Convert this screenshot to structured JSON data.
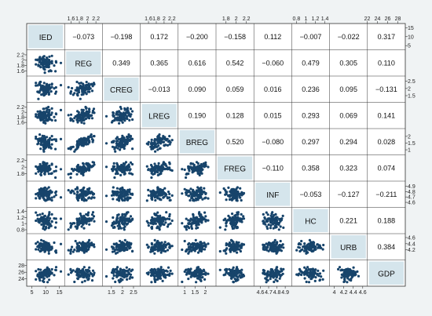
{
  "chart_data": {
    "type": "scatter-matrix",
    "variables": [
      "IED",
      "REG",
      "CREG",
      "LREG",
      "BREG",
      "FREG",
      "INF",
      "HC",
      "URB",
      "GDP"
    ],
    "correlations": [
      [
        null,
        -0.073,
        -0.198,
        0.172,
        -0.2,
        -0.158,
        0.112,
        -0.007,
        -0.022,
        0.317
      ],
      [
        null,
        null,
        0.349,
        0.365,
        0.616,
        0.542,
        -0.06,
        0.479,
        0.305,
        0.11
      ],
      [
        null,
        null,
        null,
        -0.013,
        0.09,
        0.059,
        0.016,
        0.236,
        0.095,
        -0.131
      ],
      [
        null,
        null,
        null,
        null,
        0.19,
        0.128,
        0.015,
        0.293,
        0.069,
        0.141
      ],
      [
        null,
        null,
        null,
        null,
        null,
        0.52,
        -0.08,
        0.297,
        0.294,
        0.028
      ],
      [
        null,
        null,
        null,
        null,
        null,
        null,
        -0.11,
        0.358,
        0.323,
        0.074
      ],
      [
        null,
        null,
        null,
        null,
        null,
        null,
        null,
        -0.053,
        -0.127,
        -0.211
      ],
      [
        null,
        null,
        null,
        null,
        null,
        null,
        null,
        null,
        0.221,
        0.188
      ],
      [
        null,
        null,
        null,
        null,
        null,
        null,
        null,
        null,
        null,
        0.384
      ]
    ],
    "correlation_labels": [
      [
        "",
        "−0.073",
        "−0.198",
        "0.172",
        "−0.200",
        "−0.158",
        "0.112",
        "−0.007",
        "−0.022",
        "0.317"
      ],
      [
        "",
        "",
        "0.349",
        "0.365",
        "0.616",
        "0.542",
        "−0.060",
        "0.479",
        "0.305",
        "0.110"
      ],
      [
        "",
        "",
        "",
        "−0.013",
        "0.090",
        "0.059",
        "0.016",
        "0.236",
        "0.095",
        "−0.131"
      ],
      [
        "",
        "",
        "",
        "",
        "0.190",
        "0.128",
        "0.015",
        "0.293",
        "0.069",
        "0.141"
      ],
      [
        "",
        "",
        "",
        "",
        "",
        "0.520",
        "−0.080",
        "0.297",
        "0.294",
        "0.028"
      ],
      [
        "",
        "",
        "",
        "",
        "",
        "",
        "−0.110",
        "0.358",
        "0.323",
        "0.074"
      ],
      [
        "",
        "",
        "",
        "",
        "",
        "",
        "",
        "−0.053",
        "−0.127",
        "−0.211"
      ],
      [
        "",
        "",
        "",
        "",
        "",
        "",
        "",
        "",
        "0.221",
        "0.188"
      ],
      [
        "",
        "",
        "",
        "",
        "",
        "",
        "",
        "",
        "",
        "0.384"
      ]
    ],
    "ranges": {
      "IED": [
        4,
        16
      ],
      "REG": [
        1.5,
        2.3
      ],
      "CREG": [
        1.2,
        2.7
      ],
      "LREG": [
        1.45,
        2.3
      ],
      "BREG": [
        0.8,
        2.4
      ],
      "FREG": [
        1.65,
        2.3
      ],
      "INF": [
        4.55,
        4.95
      ],
      "HC": [
        0.75,
        1.45
      ],
      "URB": [
        3.95,
        4.65
      ],
      "GDP": [
        22.5,
        29
      ]
    },
    "axis_ticks": {
      "bottom": {
        "IED": [
          "5",
          "10",
          "15"
        ],
        "CREG": [
          "1.5",
          "2",
          "2.5"
        ],
        "BREG": [
          "1",
          "1.5",
          "2"
        ],
        "INF": [
          "4.6",
          "4.7",
          "4.8",
          "4.9"
        ],
        "URB": [
          "4",
          "4.2",
          "4.4",
          "4.6"
        ]
      },
      "top": {
        "REG": [
          "1.6",
          "1.8",
          "2",
          "2.2"
        ],
        "LREG": [
          "1.6",
          "1.8",
          "2",
          "2.2"
        ],
        "FREG": [
          "1.8",
          "2",
          "2.2"
        ],
        "HC": [
          "0.8",
          "1",
          "1.2",
          "1.4"
        ],
        "GDP": [
          "22",
          "24",
          "26",
          "28"
        ]
      },
      "left": {
        "REG": [
          "1.6",
          "1.8",
          "2",
          "2.2"
        ],
        "LREG": [
          "1.6",
          "1.8",
          "2",
          "2.2"
        ],
        "FREG": [
          "1.8",
          "2",
          "2.2"
        ],
        "HC": [
          "0.8",
          "1",
          "1.2",
          "1.4"
        ],
        "GDP": [
          "24",
          "26",
          "28"
        ]
      },
      "right": {
        "IED": [
          "5",
          "10",
          "15"
        ],
        "CREG": [
          "1.5",
          "2",
          "2.5"
        ],
        "BREG": [
          "1",
          "1.5",
          "2"
        ],
        "INF": [
          "4.6",
          "4.7",
          "4.8",
          "4.9"
        ],
        "URB": [
          "4.2",
          "4.4",
          "4.6"
        ]
      }
    },
    "grid": false,
    "colors": {
      "points": "#17446b",
      "diagonal_fill": "#d5e5ec",
      "background": "#f0f3f4",
      "panel": "#ffffff",
      "border": "#333333"
    }
  }
}
